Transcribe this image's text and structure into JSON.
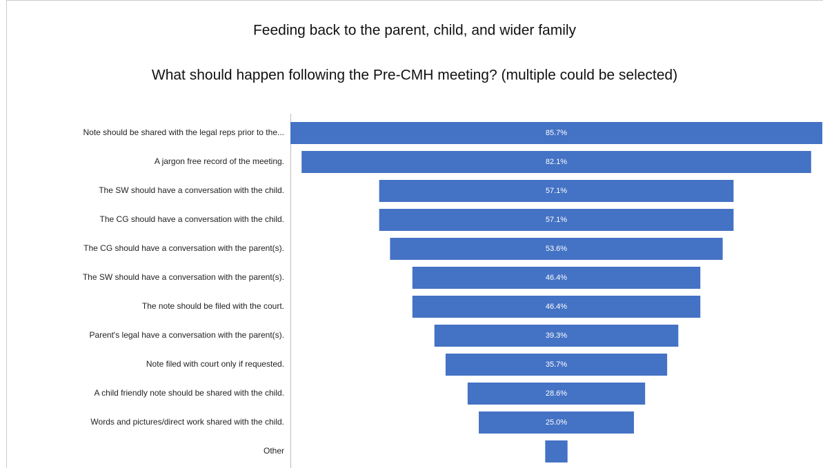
{
  "chart_data": {
    "type": "funnel",
    "title": "Feeding back to the parent, child, and wider family",
    "subtitle": "What should happen following the Pre-CMH meeting? (multiple could be selected)",
    "categories": [
      "Note should be shared with the legal reps prior to the...",
      "A jargon free record of the meeting.",
      "The SW should have a conversation with the child.",
      "The CG should have a conversation with the child.",
      "The CG should have a conversation with the parent(s).",
      "The SW should have a conversation with the parent(s).",
      "The note should be filed with the court.",
      "Parent's legal have a conversation with the parent(s).",
      "Note filed with court only if requested.",
      "A child friendly note should be shared with the child.",
      "Words and pictures/direct work shared with the child.",
      "Other"
    ],
    "values": [
      85.7,
      82.1,
      57.1,
      57.1,
      53.6,
      46.4,
      46.4,
      39.3,
      35.7,
      28.6,
      25.0,
      3.6
    ],
    "value_labels": [
      "85.7%",
      "82.1%",
      "57.1%",
      "57.1%",
      "53.6%",
      "46.4%",
      "46.4%",
      "39.3%",
      "35.7%",
      "28.6%",
      "25.0%",
      null
    ],
    "color": "#4472c4"
  }
}
